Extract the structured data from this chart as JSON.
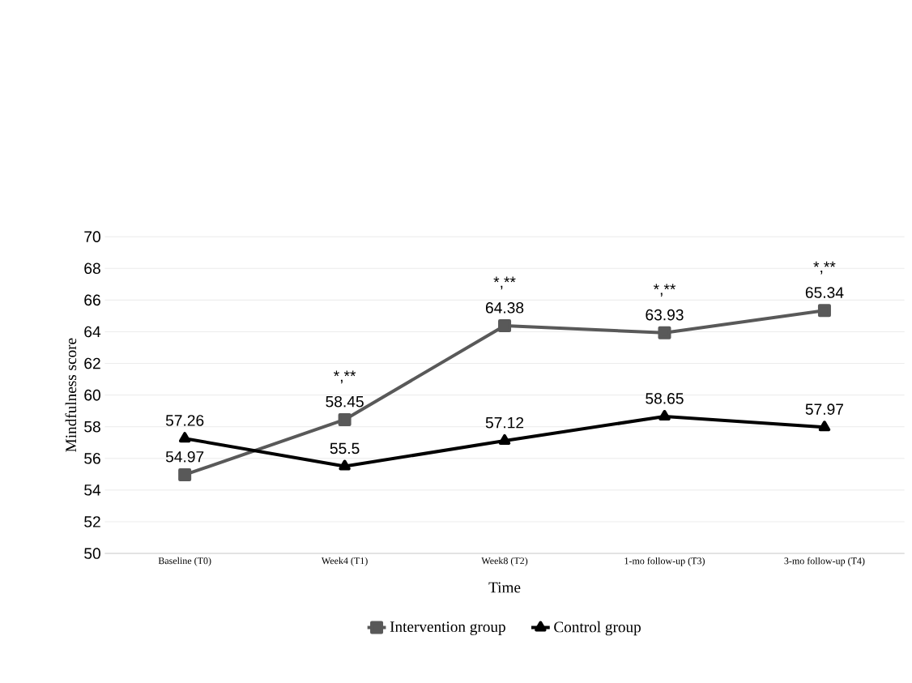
{
  "chart_data": {
    "type": "line",
    "xlabel": "Time",
    "ylabel": "Mindfulness score",
    "categories": [
      "Baseline (T0)",
      "Week4 (T1)",
      "Week8 (T2)",
      "1-mo follow-up (T3)",
      "3-mo follow-up (T4)"
    ],
    "series": [
      {
        "name": "Intervention group",
        "color": "#595959",
        "marker": "square",
        "values": [
          54.97,
          58.45,
          64.38,
          63.93,
          65.34
        ]
      },
      {
        "name": "Control group",
        "color": "#000000",
        "marker": "triangle",
        "values": [
          57.26,
          55.5,
          57.12,
          58.65,
          57.97
        ]
      }
    ],
    "ylim": [
      50,
      70
    ],
    "yticks": [
      50,
      52,
      54,
      56,
      58,
      60,
      62,
      64,
      66,
      68,
      70
    ],
    "grid": "y",
    "legend": "bottom",
    "data_labels": true,
    "line_style": "solid",
    "annotations": [
      {
        "text": "*,**",
        "x": "Week4 (T1)",
        "y": 58.45
      },
      {
        "text": "*,**",
        "x": "Week8 (T2)",
        "y": 64.38
      },
      {
        "text": "*,**",
        "x": "1-mo follow-up (T3)",
        "y": 63.93
      },
      {
        "text": "*,**",
        "x": "3-mo follow-up (T4)",
        "y": 65.34
      }
    ]
  }
}
